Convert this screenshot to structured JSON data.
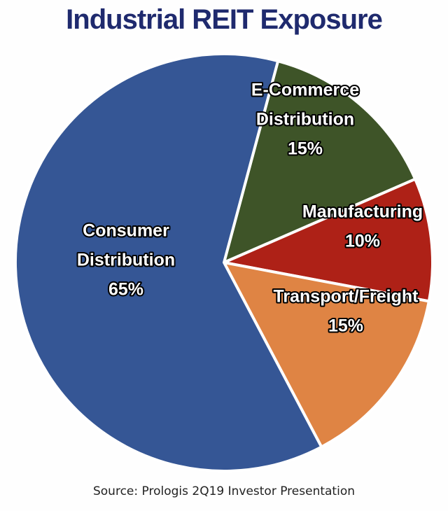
{
  "chart_data": {
    "type": "pie",
    "title": "Industrial REIT Exposure",
    "source": "Source: Prologis 2Q19 Investor Presentation",
    "slices": [
      {
        "label_lines": [
          "E-Commerce",
          "Distribution",
          "15%"
        ],
        "value": 15,
        "color": "#3e5428"
      },
      {
        "label_lines": [
          "Manufacturing",
          "10%"
        ],
        "value": 10,
        "color": "#ae2117"
      },
      {
        "label_lines": [
          "Transport/Freight",
          "15%"
        ],
        "value": 15,
        "color": "#df8444"
      },
      {
        "label_lines": [
          "Consumer",
          "Distribution",
          "65%"
        ],
        "value": 65,
        "color": "#355695"
      }
    ]
  }
}
